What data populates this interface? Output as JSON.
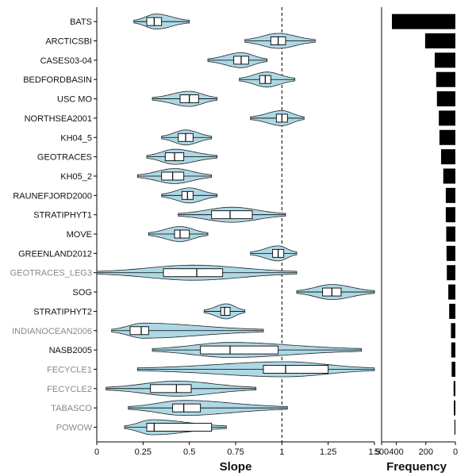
{
  "chart_data": [
    {
      "type": "violin-boxplot",
      "xlabel": "Slope",
      "ylabel": "",
      "xlim": [
        0,
        1.5
      ],
      "xticks": [
        {
          "value": 0,
          "label": "0"
        },
        {
          "value": 0.25,
          "label": "0.25"
        },
        {
          "value": 0.5,
          "label": "0.5"
        },
        {
          "value": 0.75,
          "label": "0.75"
        },
        {
          "value": 1,
          "label": "1"
        },
        {
          "value": 1.25,
          "label": "1.25"
        },
        {
          "value": 1.5,
          "label": "1.5"
        }
      ],
      "reference_line": {
        "x": 1,
        "style": "dashed"
      },
      "violin_color": "#add8e6",
      "label_colors": {
        "dark": "#111111",
        "grey": "#888888"
      },
      "categories": [
        {
          "name": "BATS",
          "label_color": "dark",
          "violin": [
            0.2,
            0.5
          ],
          "peak": 0.32,
          "box": [
            0.27,
            0.35
          ],
          "median": 0.31,
          "whiskers": [
            0.2,
            0.5
          ]
        },
        {
          "name": "ARCTICSBI",
          "label_color": "dark",
          "violin": [
            0.8,
            1.18
          ],
          "peak": 0.98,
          "box": [
            0.94,
            1.02
          ],
          "median": 0.98,
          "whiskers": [
            0.8,
            1.18
          ]
        },
        {
          "name": "CASES03-04",
          "label_color": "dark",
          "violin": [
            0.6,
            0.92
          ],
          "peak": 0.78,
          "box": [
            0.74,
            0.82
          ],
          "median": 0.78,
          "whiskers": [
            0.6,
            0.92
          ]
        },
        {
          "name": "BEDFORDBASIN",
          "label_color": "dark",
          "violin": [
            0.77,
            1.07
          ],
          "peak": 0.92,
          "box": [
            0.88,
            0.94
          ],
          "median": 0.91,
          "whiskers": [
            0.77,
            1.07
          ]
        },
        {
          "name": "USC MO",
          "label_color": "dark",
          "violin": [
            0.3,
            0.65
          ],
          "peak": 0.5,
          "box": [
            0.45,
            0.55
          ],
          "median": 0.5,
          "whiskers": [
            0.3,
            0.65
          ]
        },
        {
          "name": "NORTHSEA2001",
          "label_color": "dark",
          "violin": [
            0.83,
            1.12
          ],
          "peak": 1.0,
          "box": [
            0.97,
            1.03
          ],
          "median": 1.0,
          "whiskers": [
            0.83,
            1.12
          ]
        },
        {
          "name": "KH04_5",
          "label_color": "dark",
          "violin": [
            0.35,
            0.62
          ],
          "peak": 0.48,
          "box": [
            0.44,
            0.52
          ],
          "median": 0.48,
          "whiskers": [
            0.35,
            0.62
          ]
        },
        {
          "name": "GEOTRACES",
          "label_color": "dark",
          "violin": [
            0.27,
            0.65
          ],
          "peak": 0.42,
          "box": [
            0.37,
            0.47
          ],
          "median": 0.42,
          "whiskers": [
            0.27,
            0.65
          ]
        },
        {
          "name": "KH05_2",
          "label_color": "dark",
          "violin": [
            0.22,
            0.62
          ],
          "peak": 0.42,
          "box": [
            0.35,
            0.47
          ],
          "median": 0.41,
          "whiskers": [
            0.22,
            0.62
          ]
        },
        {
          "name": "RAUNEFJORD2000",
          "label_color": "dark",
          "violin": [
            0.35,
            0.65
          ],
          "peak": 0.5,
          "box": [
            0.46,
            0.52
          ],
          "median": 0.49,
          "whiskers": [
            0.35,
            0.65
          ]
        },
        {
          "name": "STRATIPHYT1",
          "label_color": "dark",
          "violin": [
            0.44,
            1.02
          ],
          "peak": 0.73,
          "box": [
            0.62,
            0.84
          ],
          "median": 0.72,
          "whiskers": [
            0.44,
            1.02
          ]
        },
        {
          "name": "MOVE",
          "label_color": "dark",
          "violin": [
            0.28,
            0.6
          ],
          "peak": 0.45,
          "box": [
            0.42,
            0.5
          ],
          "median": 0.45,
          "whiskers": [
            0.28,
            0.6
          ]
        },
        {
          "name": "GREENLAND2012",
          "label_color": "dark",
          "violin": [
            0.83,
            1.08
          ],
          "peak": 0.98,
          "box": [
            0.95,
            1.01
          ],
          "median": 0.98,
          "whiskers": [
            0.83,
            1.08
          ]
        },
        {
          "name": "GEOTRACES_LEG3",
          "label_color": "grey",
          "violin": [
            0.0,
            1.08
          ],
          "peak": 0.52,
          "box": [
            0.36,
            0.68
          ],
          "median": 0.54,
          "whiskers": [
            0.0,
            1.08
          ]
        },
        {
          "name": "SOG",
          "label_color": "dark",
          "violin": [
            1.08,
            1.5
          ],
          "peak": 1.27,
          "box": [
            1.22,
            1.32
          ],
          "median": 1.27,
          "whiskers": [
            1.08,
            1.5
          ]
        },
        {
          "name": "STRATIPHYT2",
          "label_color": "dark",
          "violin": [
            0.58,
            0.8
          ],
          "peak": 0.7,
          "box": [
            0.67,
            0.72
          ],
          "median": 0.69,
          "whiskers": [
            0.58,
            0.8
          ]
        },
        {
          "name": "INDIANOCEAN2006",
          "label_color": "grey",
          "violin": [
            0.08,
            0.9
          ],
          "peak": 0.25,
          "box": [
            0.18,
            0.28
          ],
          "median": 0.24,
          "whiskers": [
            0.08,
            0.9
          ]
        },
        {
          "name": "NASB2005",
          "label_color": "dark",
          "violin": [
            0.3,
            1.43
          ],
          "peak": 0.72,
          "box": [
            0.56,
            0.98
          ],
          "median": 0.72,
          "whiskers": [
            0.3,
            1.43
          ]
        },
        {
          "name": "FECYCLE1",
          "label_color": "grey",
          "violin": [
            0.22,
            1.5
          ],
          "peak": 1.02,
          "box": [
            0.9,
            1.25
          ],
          "median": 1.02,
          "whiskers": [
            0.22,
            1.5
          ]
        },
        {
          "name": "FECYCLE2",
          "label_color": "grey",
          "violin": [
            0.05,
            0.86
          ],
          "peak": 0.43,
          "box": [
            0.29,
            0.51
          ],
          "median": 0.43,
          "whiskers": [
            0.05,
            0.86
          ]
        },
        {
          "name": "TABASCO",
          "label_color": "grey",
          "violin": [
            0.17,
            1.03
          ],
          "peak": 0.47,
          "box": [
            0.41,
            0.56
          ],
          "median": 0.47,
          "whiskers": [
            0.17,
            1.03
          ]
        },
        {
          "name": "POWOW",
          "label_color": "grey",
          "violin": [
            0.15,
            0.7
          ],
          "peak": 0.3,
          "box": [
            0.27,
            0.62
          ],
          "median": 0.31,
          "whiskers": [
            0.15,
            0.7
          ]
        }
      ]
    },
    {
      "type": "bar",
      "orientation": "horizontal",
      "xlabel": "Frequency",
      "xaxis_reversed": true,
      "xlim": [
        0,
        500
      ],
      "xticks": [
        {
          "value": 500,
          "label": "500"
        },
        {
          "value": 400,
          "label": "400"
        },
        {
          "value": 200,
          "label": "200"
        },
        {
          "value": 0,
          "label": "0"
        }
      ],
      "bar_color": "#000000",
      "categories": [
        "BATS",
        "ARCTICSBI",
        "CASES03-04",
        "BEDFORDBASIN",
        "USC MO",
        "NORTHSEA2001",
        "KH04_5",
        "GEOTRACES",
        "KH05_2",
        "RAUNEFJORD2000",
        "STRATIPHYT1",
        "MOVE",
        "GREENLAND2012",
        "GEOTRACES_LEG3",
        "SOG",
        "STRATIPHYT2",
        "INDIANOCEAN2006",
        "NASB2005",
        "FECYCLE1",
        "FECYCLE2",
        "TABASCO",
        "POWOW"
      ],
      "values": [
        430,
        205,
        140,
        130,
        125,
        112,
        108,
        97,
        82,
        65,
        65,
        62,
        60,
        58,
        48,
        42,
        30,
        28,
        25,
        12,
        10,
        6
      ]
    }
  ]
}
